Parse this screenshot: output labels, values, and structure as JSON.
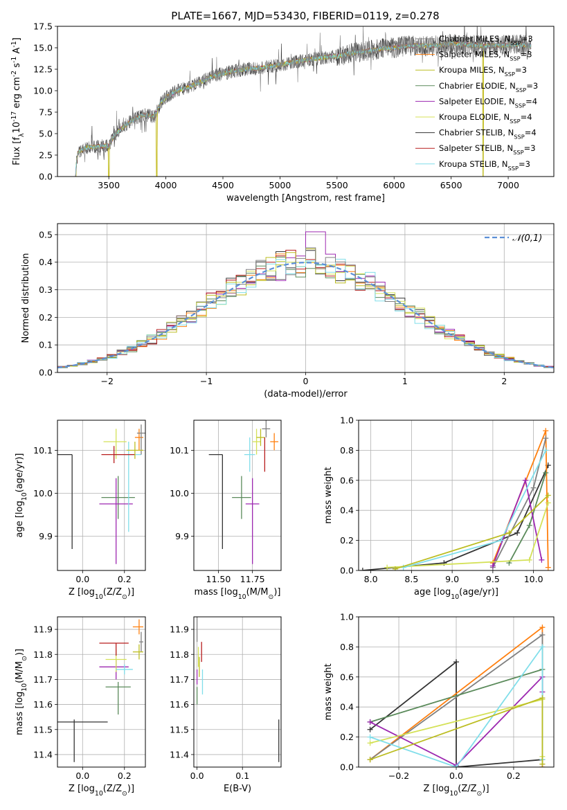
{
  "figure": {
    "title": "PLATE=1667, MJD=53430, FIBERID=0119, z=0.278"
  },
  "legend_models": [
    {
      "label": "Chabrier MILES, N$_{SSP}$=3",
      "color": "#808080"
    },
    {
      "label": "Salpeter MILES, N$_{SSP}$=3",
      "color": "#ff7f0e"
    },
    {
      "label": "Kroupa MILES, N$_{SSP}$=3",
      "color": "#bcbd22"
    },
    {
      "label": "Chabrier ELODIE, N$_{SSP}$=3",
      "color": "#5a8a5a"
    },
    {
      "label": "Salpeter ELODIE, N$_{SSP}$=4",
      "color": "#9c27b0"
    },
    {
      "label": "Kroupa ELODIE, N$_{SSP}$=4",
      "color": "#d4e157"
    },
    {
      "label": "Chabrier STELIB, N$_{SSP}$=4",
      "color": "#333333"
    },
    {
      "label": "Salpeter STELIB, N$_{SSP}$=3",
      "color": "#b71c1c"
    },
    {
      "label": "Kroupa STELIB, N$_{SSP}$=3",
      "color": "#80deea"
    }
  ],
  "chart_data": [
    {
      "id": "spectrum",
      "type": "line",
      "xlabel": "wavelength [Angstrom, rest frame]",
      "ylabel": "Flux [f$_\\lambda$10$^{-17}$ erg cm$^{-2}$ s$^{-1}$ A$^{-1}$]",
      "xlim": [
        3050,
        7400
      ],
      "ylim": [
        0,
        17.5
      ],
      "xticks": [
        3500,
        4000,
        4500,
        5000,
        5500,
        6000,
        6500,
        7000
      ],
      "yticks": [
        0.0,
        2.5,
        5.0,
        7.5,
        10.0,
        12.5,
        15.0,
        17.5
      ],
      "grid": false,
      "legend": "top-right",
      "continuum": {
        "x": [
          3200,
          3230,
          3300,
          3400,
          3500,
          3550,
          3600,
          3700,
          3800,
          3900,
          3950,
          4000,
          4100,
          4200,
          4300,
          4400,
          4500,
          4600,
          4700,
          4800,
          4900,
          5000,
          5100,
          5200,
          5300,
          5400,
          5500,
          5600,
          5700,
          5800,
          5900,
          6000,
          6100,
          6200,
          6300,
          6400,
          6500,
          6600,
          6700,
          6800,
          6900,
          7000,
          7100,
          7200
        ],
        "y": [
          0,
          2.8,
          3.4,
          3.5,
          3.6,
          4.8,
          5.5,
          6.5,
          7.2,
          7.0,
          8.5,
          9.2,
          10.0,
          10.4,
          11.0,
          11.6,
          12.0,
          12.3,
          12.5,
          12.6,
          12.8,
          13.0,
          13.3,
          13.5,
          13.7,
          13.9,
          14.0,
          14.3,
          14.5,
          14.7,
          14.9,
          15.0,
          15.2,
          15.3,
          15.2,
          15.3,
          15.5,
          15.4,
          15.3,
          15.2,
          15.3,
          15.3,
          15.4,
          15.2
        ]
      },
      "breaks": [
        3210,
        3500,
        3920,
        6780
      ]
    },
    {
      "id": "residuals",
      "type": "step",
      "xlabel": "(data-model)/error",
      "ylabel": "Normed distribution",
      "xlim": [
        -2.5,
        2.5
      ],
      "ylim": [
        0,
        0.54
      ],
      "xticks": [
        -2,
        -1,
        0,
        1,
        2
      ],
      "yticks": [
        0.0,
        0.1,
        0.2,
        0.3,
        0.4,
        0.5
      ],
      "grid": true,
      "legend": "top-right",
      "gauss_label": "$\\mathcal{N}(0,1)$",
      "gauss_color": "#5b8fd6",
      "bin_width": 0.1
    },
    {
      "id": "age-vs-Z",
      "type": "errorbar",
      "xlabel": "Z [log$_{10}$(Z/Z$_\\odot$)]",
      "ylabel": "age  [log$_{10}$(age/yr)]",
      "xlim": [
        -0.12,
        0.3
      ],
      "ylim": [
        9.82,
        10.17
      ],
      "xticks": [
        0.0,
        0.2
      ],
      "yticks": [
        9.9,
        10.0,
        10.1
      ],
      "grid": true,
      "points": [
        {
          "model": 6,
          "x": -0.05,
          "xerr": [
            0.15,
            0.0
          ],
          "y": 10.09,
          "yerr": [
            0.22,
            0.0
          ]
        },
        {
          "model": 3,
          "x": 0.17,
          "xerr": [
            0.08,
            0.08
          ],
          "y": 9.99,
          "yerr": [
            0.05,
            0.05
          ]
        },
        {
          "model": 4,
          "x": 0.16,
          "xerr": [
            0.08,
            0.08
          ],
          "y": 9.975,
          "yerr": [
            0.14,
            0.06
          ]
        },
        {
          "model": 5,
          "x": 0.16,
          "xerr": [
            0.06,
            0.05
          ],
          "y": 10.12,
          "yerr": [
            0.04,
            0.03
          ]
        },
        {
          "model": 8,
          "x": 0.22,
          "xerr": [
            0.07,
            0.06
          ],
          "y": 10.09,
          "yerr": [
            0.18,
            0.03
          ]
        },
        {
          "model": 7,
          "x": 0.15,
          "xerr": [
            0.06,
            0.1
          ],
          "y": 10.09,
          "yerr": [
            0.02,
            0.02
          ]
        },
        {
          "model": 1,
          "x": 0.27,
          "xerr": [
            0.02,
            0.02
          ],
          "y": 10.13,
          "yerr": [
            0.03,
            0.02
          ]
        },
        {
          "model": 0,
          "x": 0.28,
          "xerr": [
            0.02,
            0.02
          ],
          "y": 10.14,
          "yerr": [
            0.05,
            0.02
          ]
        },
        {
          "model": 2,
          "x": 0.25,
          "xerr": [
            0.04,
            0.04
          ],
          "y": 10.1,
          "yerr": [
            0.02,
            0.02
          ]
        }
      ]
    },
    {
      "id": "age-vs-mass",
      "type": "errorbar",
      "xlabel": "mass [log$_{10}$(M/M$_\\odot$)]",
      "ylabel": "",
      "xlim": [
        11.32,
        11.96
      ],
      "ylim": [
        9.82,
        10.17
      ],
      "xticks": [
        11.5,
        11.75
      ],
      "yticks": [
        9.9,
        10.0,
        10.1
      ],
      "grid": true,
      "points": [
        {
          "model": 6,
          "x": 11.53,
          "xerr": [
            0.1,
            0.0
          ],
          "y": 10.09,
          "yerr": [
            0.22,
            0.0
          ]
        },
        {
          "model": 3,
          "x": 11.67,
          "xerr": [
            0.07,
            0.07
          ],
          "y": 9.99,
          "yerr": [
            0.05,
            0.05
          ]
        },
        {
          "model": 4,
          "x": 11.75,
          "xerr": [
            0.05,
            0.05
          ],
          "y": 9.975,
          "yerr": [
            0.14,
            0.06
          ]
        },
        {
          "model": 8,
          "x": 11.73,
          "xerr": [
            0.04,
            0.04
          ],
          "y": 10.09,
          "yerr": [
            0.04,
            0.04
          ]
        },
        {
          "model": 5,
          "x": 11.78,
          "xerr": [
            0.03,
            0.03
          ],
          "y": 10.12,
          "yerr": [
            0.03,
            0.03
          ]
        },
        {
          "model": 2,
          "x": 11.81,
          "xerr": [
            0.03,
            0.03
          ],
          "y": 10.13,
          "yerr": [
            0.02,
            0.02
          ]
        },
        {
          "model": 7,
          "x": 11.84,
          "xerr": [
            0.0,
            0.0
          ],
          "y": 10.09,
          "yerr": [
            0.04,
            0.04
          ]
        },
        {
          "model": 0,
          "x": 11.85,
          "xerr": [
            0.03,
            0.03
          ],
          "y": 10.15,
          "yerr": [
            0.02,
            0.02
          ]
        },
        {
          "model": 1,
          "x": 11.91,
          "xerr": [
            0.03,
            0.03
          ],
          "y": 10.12,
          "yerr": [
            0.02,
            0.02
          ]
        }
      ]
    },
    {
      "id": "weight-vs-age",
      "type": "line",
      "xlabel": "age  [log$_{10}$(age/yr)]",
      "ylabel": "mass weight",
      "xlim": [
        7.85,
        10.25
      ],
      "ylim": [
        0,
        1
      ],
      "xticks": [
        8.0,
        8.5,
        9.0,
        9.5,
        10.0
      ],
      "yticks": [
        0.0,
        0.2,
        0.4,
        0.6,
        0.8,
        1.0
      ],
      "grid": true,
      "series": [
        {
          "model": 6,
          "x": [
            7.9,
            8.9,
            9.8,
            10.18
          ],
          "y": [
            0.0,
            0.05,
            0.25,
            0.7
          ]
        },
        {
          "model": 1,
          "x": [
            9.5,
            10.15,
            10.18
          ],
          "y": [
            0.05,
            0.93,
            0.02
          ]
        },
        {
          "model": 0,
          "x": [
            9.5,
            10.0,
            10.15
          ],
          "y": [
            0.02,
            0.55,
            0.88
          ]
        },
        {
          "model": 3,
          "x": [
            9.7,
            9.95,
            10.15
          ],
          "y": [
            0.05,
            0.3,
            0.65
          ]
        },
        {
          "model": 4,
          "x": [
            9.5,
            9.9,
            10.1
          ],
          "y": [
            0.03,
            0.6,
            0.07
          ]
        },
        {
          "model": 5,
          "x": [
            8.2,
            9.95,
            10.18
          ],
          "y": [
            0.02,
            0.07,
            0.45
          ]
        },
        {
          "model": 8,
          "x": [
            8.4,
            9.6,
            10.15
          ],
          "y": [
            0.02,
            0.2,
            0.8
          ]
        },
        {
          "model": 2,
          "x": [
            8.3,
            9.7,
            10.18
          ],
          "y": [
            0.01,
            0.25,
            0.5
          ]
        }
      ]
    },
    {
      "id": "mass-vs-Z",
      "type": "errorbar",
      "xlabel": "Z [log$_{10}$(Z/Z$_\\odot$)]",
      "ylabel": "mass [log$_{10}$(M/M$_\\odot$)]",
      "xlim": [
        -0.12,
        0.3
      ],
      "ylim": [
        11.35,
        11.95
      ],
      "xticks": [
        0.0,
        0.2
      ],
      "yticks": [
        11.4,
        11.5,
        11.6,
        11.7,
        11.8,
        11.9
      ],
      "grid": true,
      "points": [
        {
          "model": 6,
          "x": -0.04,
          "xerr": [
            0.08,
            0.16
          ],
          "y": 11.53,
          "yerr": [
            0.16,
            0.01
          ]
        },
        {
          "model": 3,
          "x": 0.17,
          "xerr": [
            0.06,
            0.06
          ],
          "y": 11.67,
          "yerr": [
            0.11,
            0.02
          ]
        },
        {
          "model": 4,
          "x": 0.16,
          "xerr": [
            0.08,
            0.06
          ],
          "y": 11.75,
          "yerr": [
            0.05,
            0.03
          ]
        },
        {
          "model": 5,
          "x": 0.16,
          "xerr": [
            0.05,
            0.05
          ],
          "y": 11.78,
          "yerr": [
            0.05,
            0.04
          ]
        },
        {
          "model": 7,
          "x": 0.16,
          "xerr": [
            0.08,
            0.06
          ],
          "y": 11.845,
          "yerr": [
            0.05,
            0.0
          ]
        },
        {
          "model": 8,
          "x": 0.2,
          "xerr": [
            0.04,
            0.04
          ],
          "y": 11.74,
          "yerr": [
            0.02,
            0.02
          ]
        },
        {
          "model": 1,
          "x": 0.27,
          "xerr": [
            0.03,
            0.02
          ],
          "y": 11.91,
          "yerr": [
            0.03,
            0.03
          ]
        },
        {
          "model": 0,
          "x": 0.28,
          "xerr": [
            0.01,
            0.01
          ],
          "y": 11.85,
          "yerr": [
            0.04,
            0.04
          ]
        },
        {
          "model": 2,
          "x": 0.27,
          "xerr": [
            0.03,
            0.02
          ],
          "y": 11.81,
          "yerr": [
            0.03,
            0.03
          ]
        }
      ]
    },
    {
      "id": "mass-vs-EBV",
      "type": "errorbar",
      "xlabel": "E(B-V)",
      "ylabel": "",
      "xlim": [
        -0.007,
        0.185
      ],
      "ylim": [
        11.35,
        11.95
      ],
      "xticks": [
        0.0,
        0.1
      ],
      "yticks": [
        11.4,
        11.5,
        11.6,
        11.7,
        11.8,
        11.9
      ],
      "grid": true,
      "points": [
        {
          "model": 6,
          "x": 0.18,
          "xerr": [
            0.0,
            0.0
          ],
          "y": 11.45,
          "yerr": [
            0.08,
            0.09
          ]
        },
        {
          "model": 3,
          "x": 0.0,
          "xerr": [
            0.0,
            0.0
          ],
          "y": 11.63,
          "yerr": [
            0.03,
            0.04
          ]
        },
        {
          "model": 4,
          "x": 0.0,
          "xerr": [
            0.0,
            0.0
          ],
          "y": 11.71,
          "yerr": [
            0.03,
            0.03
          ]
        },
        {
          "model": 5,
          "x": 0.003,
          "xerr": [
            0.0,
            0.0
          ],
          "y": 11.79,
          "yerr": [
            0.04,
            0.04
          ]
        },
        {
          "model": 8,
          "x": 0.012,
          "xerr": [
            0.0,
            0.0
          ],
          "y": 11.69,
          "yerr": [
            0.05,
            0.05
          ]
        },
        {
          "model": 7,
          "x": 0.01,
          "xerr": [
            0.0,
            0.0
          ],
          "y": 11.81,
          "yerr": [
            0.04,
            0.04
          ]
        },
        {
          "model": 0,
          "x": 0.0,
          "xerr": [
            0.0,
            0.0
          ],
          "y": 11.9,
          "yerr": [
            0.05,
            0.05
          ]
        },
        {
          "model": 2,
          "x": 0.005,
          "xerr": [
            0.0,
            0.0
          ],
          "y": 11.75,
          "yerr": [
            0.04,
            0.04
          ]
        }
      ]
    },
    {
      "id": "weight-vs-Z",
      "type": "line",
      "xlabel": "Z [log$_{10}$(Z/Z$_\\odot$)]",
      "ylabel": "mass weight",
      "xlim": [
        -0.34,
        0.34
      ],
      "ylim": [
        0,
        1
      ],
      "xticks": [
        -0.2,
        0.0,
        0.2
      ],
      "yticks": [
        0.0,
        0.2,
        0.4,
        0.6,
        0.8,
        1.0
      ],
      "grid": true,
      "series": [
        {
          "model": 6,
          "x": [
            -0.3,
            0.0,
            0.0,
            0.3
          ],
          "y": [
            0.25,
            0.7,
            0.0,
            0.05
          ]
        },
        {
          "model": 1,
          "x": [
            -0.3,
            0.3,
            0.3
          ],
          "y": [
            0.05,
            0.93,
            0.0
          ]
        },
        {
          "model": 0,
          "x": [
            -0.3,
            0.3,
            0.3
          ],
          "y": [
            0.05,
            0.88,
            0.02
          ]
        },
        {
          "model": 3,
          "x": [
            -0.3,
            0.3,
            0.3
          ],
          "y": [
            0.3,
            0.65,
            0.05
          ]
        },
        {
          "model": 4,
          "x": [
            -0.3,
            0.0,
            0.3,
            0.3
          ],
          "y": [
            0.3,
            0.01,
            0.6,
            0.5
          ]
        },
        {
          "model": 5,
          "x": [
            -0.3,
            0.3,
            0.3
          ],
          "y": [
            0.16,
            0.45,
            0.07
          ]
        },
        {
          "model": 8,
          "x": [
            -0.3,
            0.0,
            0.3,
            0.3
          ],
          "y": [
            0.2,
            0.0,
            0.8,
            0.05
          ]
        },
        {
          "model": 2,
          "x": [
            -0.3,
            0.3,
            0.3
          ],
          "y": [
            0.05,
            0.46,
            0.02
          ]
        }
      ]
    }
  ]
}
